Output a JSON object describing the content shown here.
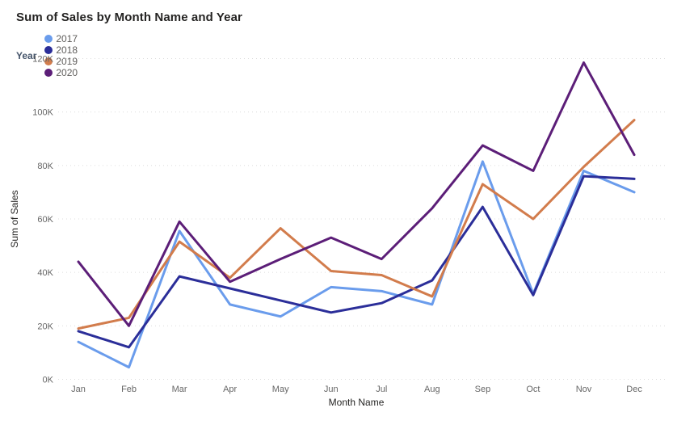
{
  "title": "Sum of Sales by Month Name and Year",
  "legend": {
    "label": "Year",
    "items": [
      {
        "label": "2017",
        "color": "#6A9CEC"
      },
      {
        "label": "2018",
        "color": "#2B2E99"
      },
      {
        "label": "2019",
        "color": "#D27C4C"
      },
      {
        "label": "2020",
        "color": "#5C1E78"
      }
    ]
  },
  "chart_data": {
    "type": "line",
    "title": "Sum of Sales by Month Name and Year",
    "xlabel": "Month Name",
    "ylabel": "Sum of Sales",
    "categories": [
      "Jan",
      "Feb",
      "Mar",
      "Apr",
      "May",
      "Jun",
      "Jul",
      "Aug",
      "Sep",
      "Oct",
      "Nov",
      "Dec"
    ],
    "y_ticks": [
      "0K",
      "20K",
      "40K",
      "60K",
      "80K",
      "100K",
      "120K"
    ],
    "y_tick_values": [
      0,
      20000,
      40000,
      60000,
      80000,
      100000,
      120000
    ],
    "ylim": [
      0,
      120000
    ],
    "grid": "horizontal-dotted",
    "gridline_color": "#DCDCDC",
    "legend_position": "top-left",
    "series": [
      {
        "name": "2017",
        "color": "#6A9CEC",
        "values": [
          14000,
          4500,
          55500,
          28000,
          23500,
          34500,
          33000,
          28000,
          81500,
          32000,
          78000,
          70000
        ]
      },
      {
        "name": "2018",
        "color": "#2B2E99",
        "values": [
          18000,
          12000,
          38500,
          34000,
          29500,
          25000,
          28500,
          37000,
          64500,
          31500,
          76000,
          75000
        ]
      },
      {
        "name": "2019",
        "color": "#D27C4C",
        "values": [
          19000,
          23000,
          51500,
          38000,
          56500,
          40500,
          39000,
          31000,
          73000,
          60000,
          79500,
          97000
        ]
      },
      {
        "name": "2020",
        "color": "#5C1E78",
        "values": [
          44000,
          20000,
          59000,
          36500,
          45000,
          53000,
          45000,
          64000,
          87500,
          78000,
          118500,
          84000
        ]
      }
    ]
  }
}
